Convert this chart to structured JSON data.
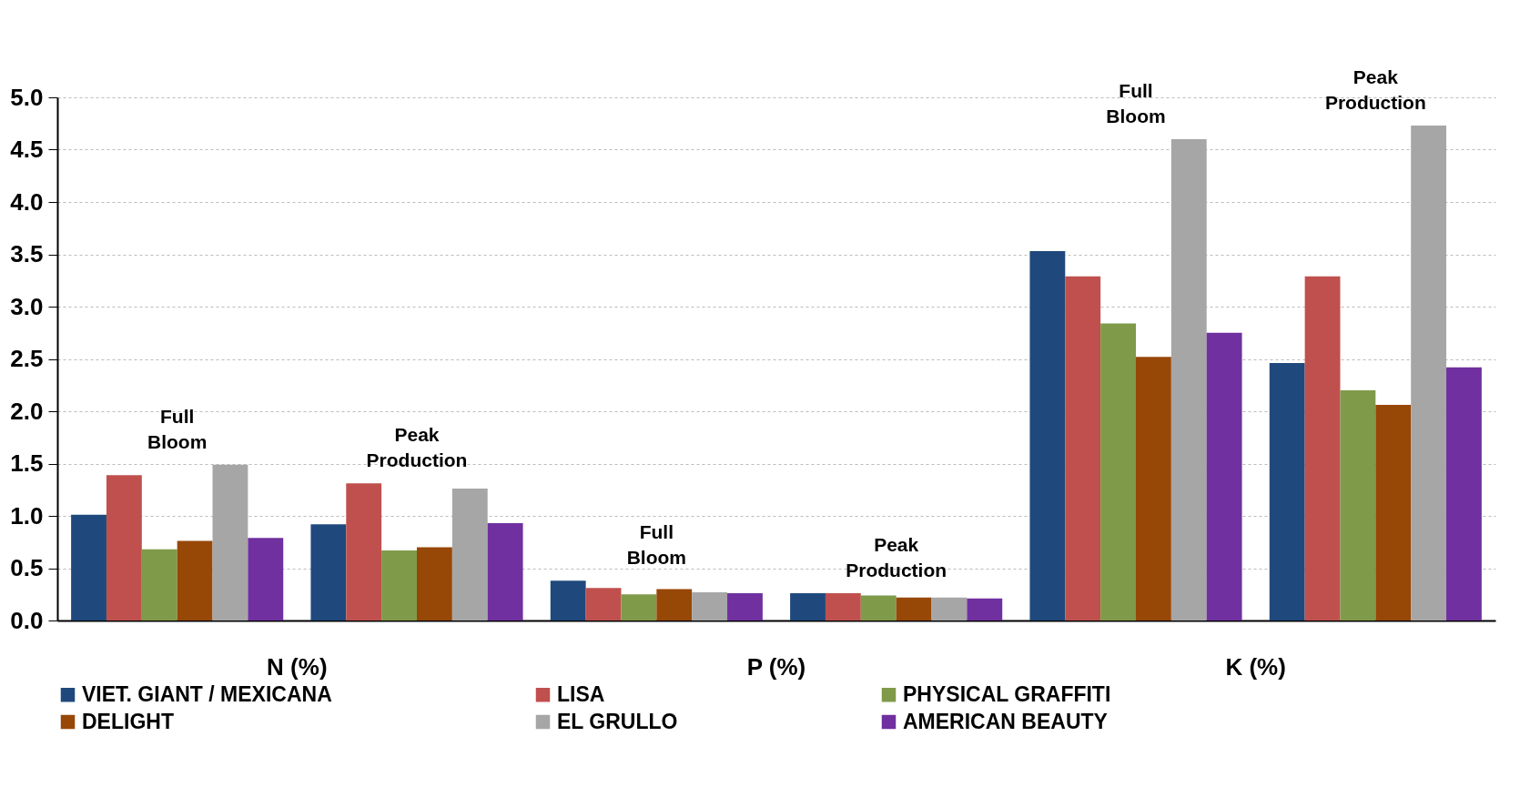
{
  "chart_data": {
    "type": "bar",
    "categories": [
      "Full Bloom",
      "Peak Production",
      "Full Bloom",
      "Peak Production",
      "Full Bloom",
      "Peak Production"
    ],
    "annotations": [
      "N  (%)",
      "P (%)",
      "K (%)"
    ],
    "series": [
      {
        "name": "VIET. GIANT / MEXICANA",
        "color": "#1f497d",
        "values": [
          1.01,
          0.92,
          0.38,
          0.26,
          3.53,
          2.46
        ]
      },
      {
        "name": "LISA",
        "color": "#c0504d",
        "values": [
          1.39,
          1.31,
          0.31,
          0.26,
          3.29,
          3.29
        ]
      },
      {
        "name": "PHYSICAL GRAFFITI",
        "color": "#7f9a48",
        "values": [
          0.68,
          0.67,
          0.25,
          0.24,
          2.84,
          2.2
        ]
      },
      {
        "name": "DELIGHT",
        "color": "#974706",
        "values": [
          0.76,
          0.7,
          0.3,
          0.22,
          2.52,
          2.06
        ]
      },
      {
        "name": "EL GRULLO",
        "color": "#a6a6a6",
        "values": [
          1.49,
          1.26,
          0.27,
          0.22,
          4.6,
          4.73
        ]
      },
      {
        "name": "AMERICAN BEAUTY",
        "color": "#7030a0",
        "values": [
          0.79,
          0.93,
          0.26,
          0.21,
          2.75,
          2.42
        ]
      }
    ],
    "ylim": [
      0,
      5
    ],
    "yticks": [
      {
        "value": 0,
        "label": "0.0"
      },
      {
        "value": 0.5,
        "label": "0.5"
      },
      {
        "value": 1,
        "label": "1.0"
      },
      {
        "value": 1.5,
        "label": "1.5"
      },
      {
        "value": 2,
        "label": "2.0"
      },
      {
        "value": 2.5,
        "label": "2.5"
      },
      {
        "value": 3,
        "label": "3.0"
      },
      {
        "value": 3.5,
        "label": "3.5"
      },
      {
        "value": 4,
        "label": "4.0"
      },
      {
        "value": 4.5,
        "label": "4.5"
      },
      {
        "value": 5,
        "label": "5.0"
      }
    ],
    "grid": "y",
    "legend": "bottom"
  }
}
